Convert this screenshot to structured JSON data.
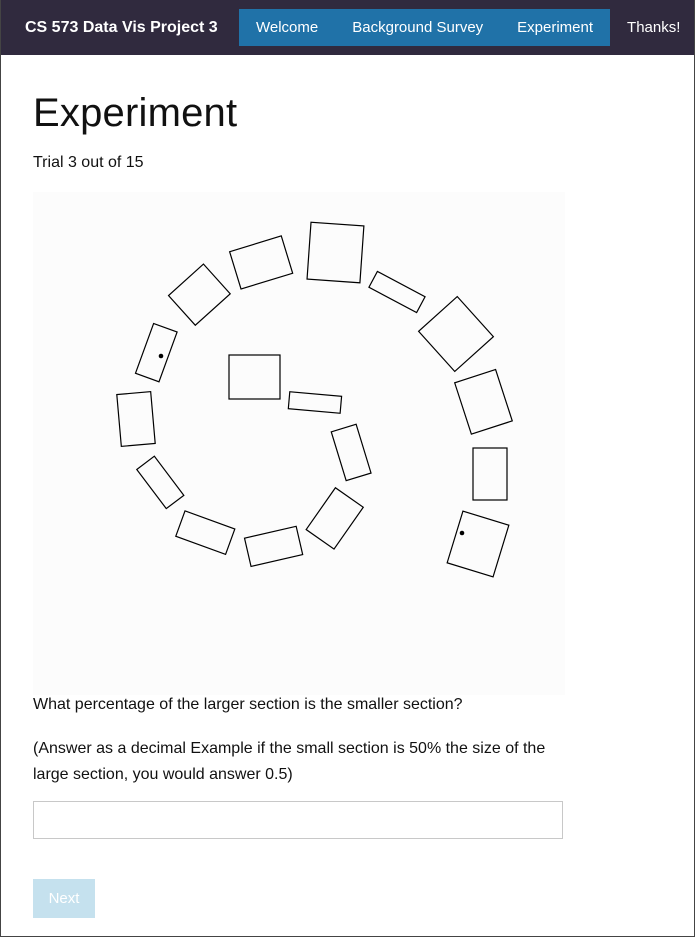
{
  "navbar": {
    "brand": "CS 573 Data Vis Project 3",
    "tabs": [
      {
        "label": "Welcome",
        "highlighted": true
      },
      {
        "label": "Background Survey",
        "highlighted": true
      },
      {
        "label": "Experiment",
        "highlighted": true
      },
      {
        "label": "Thanks!",
        "highlighted": false
      }
    ],
    "colors": {
      "bar": "#302a3e",
      "tab_highlight": "#2072a8"
    }
  },
  "page": {
    "title": "Experiment",
    "trial_text": "Trial 3 out of 15"
  },
  "stimulus": {
    "description_shape": "rectangles arranged in a spiral",
    "marked_rectangles": 2
  },
  "question": {
    "prompt": "What percentage of the larger section is the smaller section?",
    "hint": "(Answer as a decimal Example if the small section is 50% the size of the large section, you would answer 0.5)"
  },
  "answer": {
    "value": "",
    "placeholder": ""
  },
  "next_button": {
    "label": "Next",
    "disabled": true,
    "color": "#c5e1ee"
  }
}
